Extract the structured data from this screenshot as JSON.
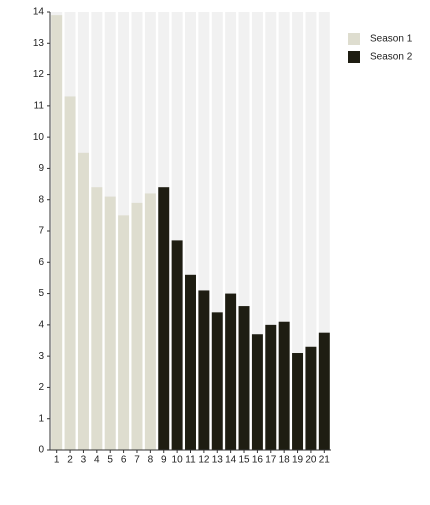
{
  "chart_data": {
    "type": "bar",
    "categories": [
      "1",
      "2",
      "3",
      "4",
      "5",
      "6",
      "7",
      "8",
      "9",
      "10",
      "11",
      "12",
      "13",
      "14",
      "15",
      "16",
      "17",
      "18",
      "19",
      "20",
      "21"
    ],
    "series": [
      {
        "name": "Season 1",
        "color": "#deddcf",
        "values": [
          13.9,
          11.3,
          9.5,
          8.4,
          8.1,
          7.5,
          7.9,
          8.2,
          null,
          null,
          null,
          null,
          null,
          null,
          null,
          null,
          null,
          null,
          null,
          null,
          null
        ]
      },
      {
        "name": "Season 2",
        "color": "#1e1d12",
        "values": [
          null,
          null,
          null,
          null,
          null,
          null,
          null,
          null,
          8.4,
          6.7,
          5.6,
          5.1,
          4.4,
          5.0,
          4.6,
          3.7,
          4.0,
          4.1,
          3.1,
          3.3,
          3.75
        ]
      }
    ],
    "ylim": [
      0,
      14
    ],
    "yticks": [
      0,
      1,
      2,
      3,
      4,
      5,
      6,
      7,
      8,
      9,
      10,
      11,
      12,
      13,
      14
    ],
    "legend": "right"
  }
}
